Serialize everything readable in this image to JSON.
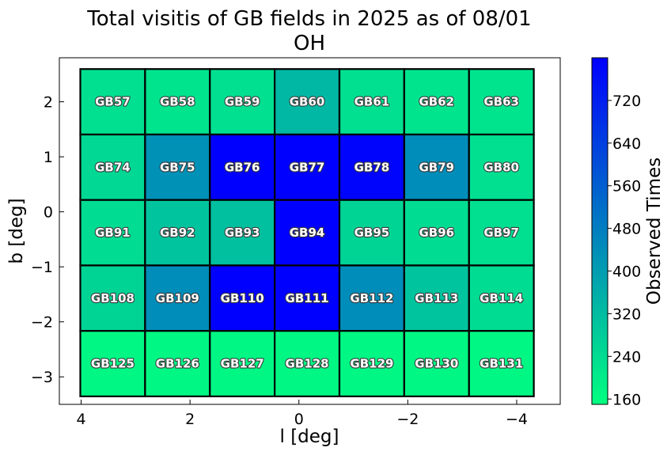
{
  "chart_data": {
    "type": "heatmap",
    "title": "Total visitis of GB fields in 2025 as of 08/01",
    "subtitle": "OH",
    "xlabel": "l [deg]",
    "ylabel": "b [deg]",
    "xlim": [
      4.4,
      -4.8
    ],
    "ylim": [
      -3.5,
      2.8
    ],
    "x_ticks": [
      4,
      2,
      0,
      -2,
      -4
    ],
    "x_tick_labels": [
      "4",
      "2",
      "0",
      "−2",
      "−4"
    ],
    "y_ticks": [
      2,
      1,
      0,
      -1,
      -2,
      -3
    ],
    "y_tick_labels": [
      "2",
      "1",
      "0",
      "−1",
      "−2",
      "−3"
    ],
    "cell_width_deg": 1.19,
    "cell_height_deg": 1.19,
    "columns_l_center": [
      3.42,
      2.23,
      1.04,
      -0.15,
      -1.34,
      -2.53,
      -3.72
    ],
    "rows_b_center": [
      2.0,
      0.81,
      -0.38,
      -1.57,
      -2.76
    ],
    "grid": false,
    "colorbar": {
      "label": "Observed Times",
      "min": 150,
      "max": 800,
      "ticks": [
        160,
        240,
        320,
        400,
        480,
        560,
        640,
        720
      ],
      "color_low": "#00ff80",
      "color_high": "#0000ff"
    },
    "fields": [
      [
        "GB57",
        "GB58",
        "GB59",
        "GB60",
        "GB61",
        "GB62",
        "GB63"
      ],
      [
        "GB74",
        "GB75",
        "GB76",
        "GB77",
        "GB78",
        "GB79",
        "GB80"
      ],
      [
        "GB91",
        "GB92",
        "GB93",
        "GB94",
        "GB95",
        "GB96",
        "GB97"
      ],
      [
        "GB108",
        "GB109",
        "GB110",
        "GB111",
        "GB112",
        "GB113",
        "GB114"
      ],
      [
        "GB125",
        "GB126",
        "GB127",
        "GB128",
        "GB129",
        "GB130",
        "GB131"
      ]
    ],
    "values": [
      [
        230,
        220,
        230,
        330,
        230,
        220,
        220
      ],
      [
        250,
        430,
        800,
        800,
        790,
        440,
        230
      ],
      [
        240,
        300,
        310,
        800,
        260,
        240,
        230
      ],
      [
        260,
        440,
        800,
        800,
        440,
        300,
        240
      ],
      [
        170,
        170,
        170,
        170,
        170,
        170,
        170
      ]
    ]
  }
}
